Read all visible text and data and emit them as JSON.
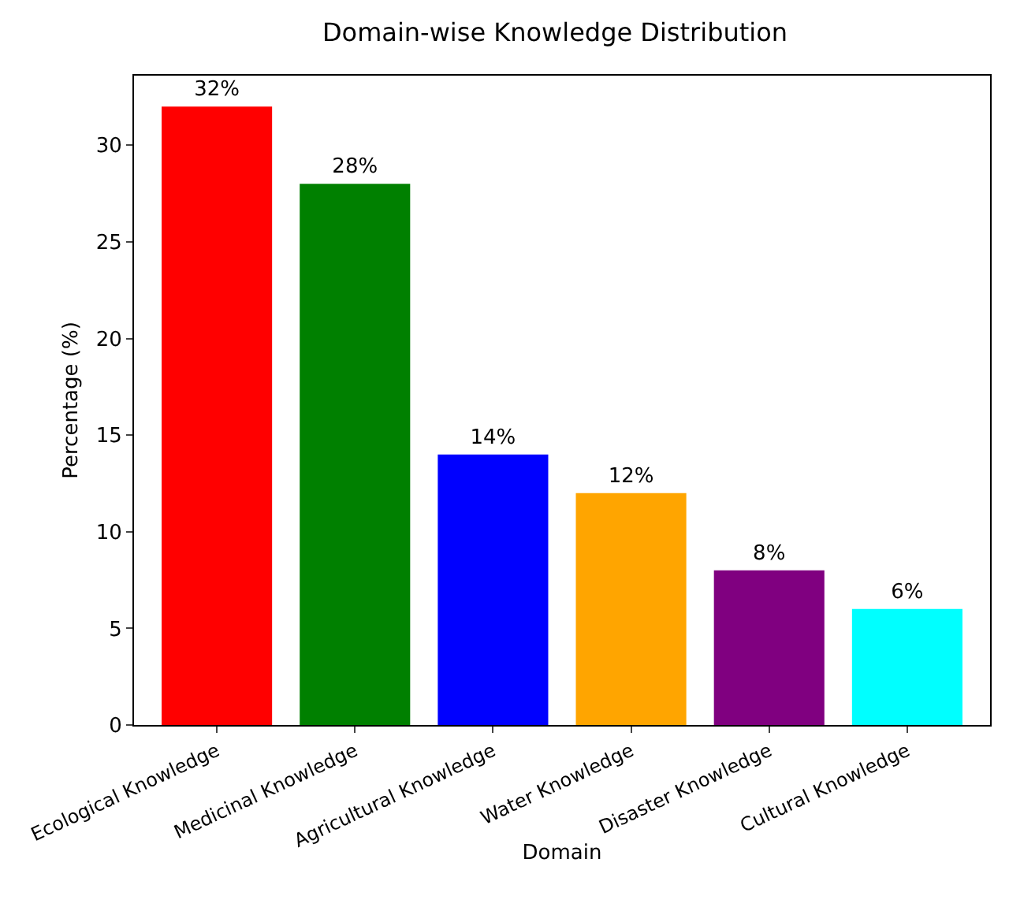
{
  "chart_data": {
    "type": "bar",
    "title": "Domain-wise Knowledge Distribution",
    "xlabel": "Domain",
    "ylabel": "Percentage (%)",
    "categories": [
      "Ecological Knowledge",
      "Medicinal Knowledge",
      "Agricultural Knowledge",
      "Water Knowledge",
      "Disaster Knowledge",
      "Cultural Knowledge"
    ],
    "values": [
      32,
      28,
      14,
      12,
      8,
      6
    ],
    "colors": [
      "#ff0000",
      "#008000",
      "#0000ff",
      "#ffa500",
      "#800080",
      "#00ffff"
    ],
    "value_labels": [
      "32%",
      "28%",
      "14%",
      "12%",
      "8%",
      "6%"
    ],
    "ylim": [
      0,
      33.6
    ],
    "yticks": [
      0,
      5,
      10,
      15,
      20,
      25,
      30
    ],
    "grid": false,
    "legend": false
  }
}
